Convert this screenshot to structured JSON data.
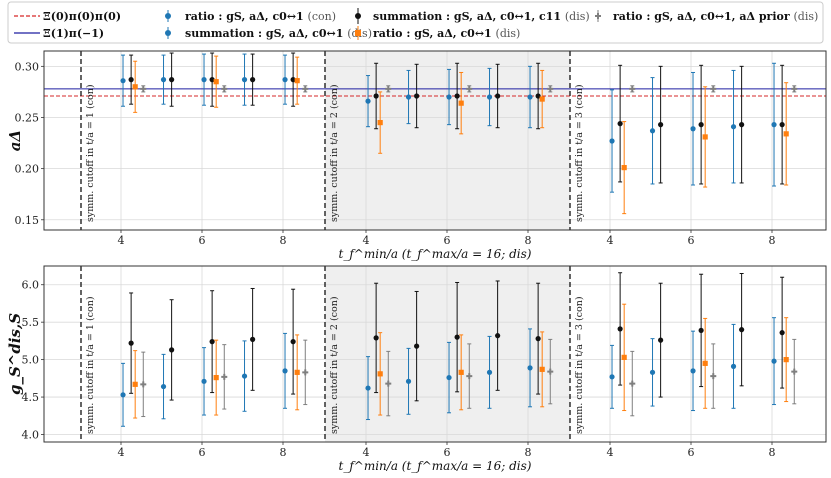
{
  "legend": {
    "items": [
      {
        "id": "xi00",
        "kind": "line",
        "color": "#d62728",
        "dash": true,
        "label": "Ξ(0)π(0)π(0)",
        "suffix": ""
      },
      {
        "id": "xi1m1",
        "kind": "line",
        "color": "#1f1fa0",
        "dash": false,
        "label": "Ξ(1)π(−1)",
        "suffix": ""
      },
      {
        "id": "ratio_con",
        "kind": "point",
        "color": "#1f77b4",
        "label": "ratio : gS, aΔ, c0↔1",
        "suffix": "(con)"
      },
      {
        "id": "sum_dis",
        "kind": "point",
        "color": "#1f77b4",
        "label": "summation : gS, aΔ, c0↔1",
        "suffix": "(dis)"
      },
      {
        "id": "sum11_dis",
        "kind": "point",
        "color": "#111111",
        "label": "summation : gS, aΔ, c0↔1, c11",
        "suffix": "(dis)"
      },
      {
        "id": "ratio_dis",
        "kind": "point",
        "color": "#ff7f0e",
        "label": "ratio : gS, aΔ, c0↔1",
        "suffix": "(dis)"
      },
      {
        "id": "ratio_prior",
        "kind": "point",
        "color": "#7f7f7f",
        "label": "ratio : gS, aΔ, c0↔1, aΔ prior",
        "suffix": "(dis)"
      }
    ]
  },
  "annotations": {
    "cut1": "symm. cutoff in t/a = 1 (con)",
    "cut2": "symm. cutoff in t/a = 2 (con)",
    "cut3": "symm. cutoff in t/a = 3 (con)"
  },
  "chart_data": [
    {
      "type": "scatter",
      "name": "top",
      "ylabel": "aΔ",
      "xlabel": "t_f^min/a (t_f^max/a = 16; dis)",
      "ylim": [
        0.14,
        0.315
      ],
      "yticks": [
        "0.15",
        "0.20",
        "0.25",
        "0.30"
      ],
      "ytick_values": [
        0.15,
        0.2,
        0.25,
        0.3
      ],
      "xticks": [
        "4",
        "6",
        "8",
        "4",
        "6",
        "8",
        "4",
        "6",
        "8"
      ],
      "hlines": [
        {
          "series": "xi00",
          "y": 0.271
        },
        {
          "series": "xi1m1",
          "y": 0.278
        }
      ],
      "series": [
        {
          "id": "sum_dis",
          "color": "#1f77b4",
          "marker": "circle",
          "points": [
            [
              0,
              4.05,
              0.286,
              0.025
            ],
            [
              0,
              5.05,
              0.287,
              0.024
            ],
            [
              0,
              6.05,
              0.287,
              0.025
            ],
            [
              0,
              7.05,
              0.287,
              0.025
            ],
            [
              0,
              8.05,
              0.287,
              0.024
            ],
            [
              1,
              4.05,
              0.266,
              0.025
            ],
            [
              1,
              5.05,
              0.27,
              0.026
            ],
            [
              1,
              6.05,
              0.27,
              0.027
            ],
            [
              1,
              7.05,
              0.27,
              0.028
            ],
            [
              1,
              8.05,
              0.27,
              0.03
            ],
            [
              2,
              4.05,
              0.227,
              0.05
            ],
            [
              2,
              5.05,
              0.237,
              0.052
            ],
            [
              2,
              6.05,
              0.239,
              0.055
            ],
            [
              2,
              7.05,
              0.241,
              0.055
            ],
            [
              2,
              8.05,
              0.243,
              0.06
            ]
          ]
        },
        {
          "id": "sum11_dis",
          "color": "#111111",
          "marker": "circle",
          "points": [
            [
              0,
              4.25,
              0.287,
              0.024
            ],
            [
              0,
              5.25,
              0.287,
              0.026
            ],
            [
              0,
              6.25,
              0.287,
              0.026
            ],
            [
              0,
              7.25,
              0.287,
              0.025
            ],
            [
              0,
              8.25,
              0.287,
              0.026
            ],
            [
              1,
              4.25,
              0.271,
              0.032
            ],
            [
              1,
              5.25,
              0.271,
              0.031
            ],
            [
              1,
              6.25,
              0.271,
              0.032
            ],
            [
              1,
              7.25,
              0.271,
              0.031
            ],
            [
              1,
              8.25,
              0.271,
              0.032
            ],
            [
              2,
              4.25,
              0.244,
              0.057
            ],
            [
              2,
              5.25,
              0.243,
              0.057
            ],
            [
              2,
              6.25,
              0.243,
              0.058
            ],
            [
              2,
              7.25,
              0.243,
              0.057
            ],
            [
              2,
              8.25,
              0.243,
              0.058
            ]
          ]
        },
        {
          "id": "ratio_dis",
          "color": "#ff7f0e",
          "marker": "square",
          "points": [
            [
              0,
              4.35,
              0.28,
              0.025
            ],
            [
              0,
              6.35,
              0.285,
              0.025
            ],
            [
              0,
              8.35,
              0.286,
              0.023
            ],
            [
              1,
              4.35,
              0.245,
              0.03
            ],
            [
              1,
              6.35,
              0.264,
              0.03
            ],
            [
              1,
              8.35,
              0.268,
              0.028
            ],
            [
              2,
              4.35,
              0.201,
              0.045
            ],
            [
              2,
              6.35,
              0.231,
              0.049
            ],
            [
              2,
              8.35,
              0.234,
              0.05
            ]
          ]
        },
        {
          "id": "ratio_prior",
          "color": "#7f7f7f",
          "marker": "plus",
          "points": [
            [
              0,
              4.55,
              0.278,
              0.003
            ],
            [
              0,
              6.55,
              0.278,
              0.003
            ],
            [
              0,
              8.55,
              0.278,
              0.003
            ],
            [
              1,
              4.55,
              0.278,
              0.003
            ],
            [
              1,
              6.55,
              0.278,
              0.003
            ],
            [
              1,
              8.55,
              0.278,
              0.003
            ],
            [
              2,
              4.55,
              0.278,
              0.003
            ],
            [
              2,
              6.55,
              0.278,
              0.003
            ],
            [
              2,
              8.55,
              0.278,
              0.003
            ]
          ]
        }
      ]
    },
    {
      "type": "scatter",
      "name": "bottom",
      "ylabel": "g_S^dis,S",
      "xlabel": "t_f^min/a (t_f^max/a = 16; dis)",
      "ylim": [
        3.9,
        6.25
      ],
      "yticks": [
        "4.0",
        "4.5",
        "5.0",
        "5.5",
        "6.0"
      ],
      "ytick_values": [
        4.0,
        4.5,
        5.0,
        5.5,
        6.0
      ],
      "xticks": [
        "4",
        "6",
        "8",
        "4",
        "6",
        "8",
        "4",
        "6",
        "8"
      ],
      "hlines": [],
      "series": [
        {
          "id": "sum_dis",
          "color": "#1f77b4",
          "marker": "circle",
          "points": [
            [
              0,
              4.05,
              4.53,
              0.42
            ],
            [
              0,
              5.05,
              4.64,
              0.43
            ],
            [
              0,
              6.05,
              4.71,
              0.45
            ],
            [
              0,
              7.05,
              4.78,
              0.47
            ],
            [
              0,
              8.05,
              4.85,
              0.5
            ],
            [
              1,
              4.05,
              4.62,
              0.42
            ],
            [
              1,
              5.05,
              4.71,
              0.44
            ],
            [
              1,
              6.05,
              4.76,
              0.47
            ],
            [
              1,
              7.05,
              4.83,
              0.48
            ],
            [
              1,
              8.05,
              4.89,
              0.52
            ],
            [
              2,
              4.05,
              4.77,
              0.42
            ],
            [
              2,
              5.05,
              4.83,
              0.45
            ],
            [
              2,
              6.05,
              4.85,
              0.53
            ],
            [
              2,
              7.05,
              4.91,
              0.56
            ],
            [
              2,
              8.05,
              4.98,
              0.58
            ]
          ]
        },
        {
          "id": "sum11_dis",
          "color": "#111111",
          "marker": "circle",
          "points": [
            [
              0,
              4.25,
              5.22,
              0.67
            ],
            [
              0,
              5.25,
              5.13,
              0.67
            ],
            [
              0,
              6.25,
              5.24,
              0.68
            ],
            [
              0,
              7.25,
              5.27,
              0.68
            ],
            [
              0,
              8.25,
              5.24,
              0.7
            ],
            [
              1,
              4.25,
              5.29,
              0.73
            ],
            [
              1,
              5.25,
              5.18,
              0.73
            ],
            [
              1,
              6.25,
              5.3,
              0.73
            ],
            [
              1,
              7.25,
              5.32,
              0.73
            ],
            [
              1,
              8.25,
              5.28,
              0.74
            ],
            [
              2,
              4.25,
              5.41,
              0.75
            ],
            [
              2,
              5.25,
              5.26,
              0.76
            ],
            [
              2,
              6.25,
              5.39,
              0.75
            ],
            [
              2,
              7.25,
              5.4,
              0.75
            ],
            [
              2,
              8.25,
              5.36,
              0.74
            ]
          ]
        },
        {
          "id": "ratio_dis",
          "color": "#ff7f0e",
          "marker": "square",
          "points": [
            [
              0,
              4.35,
              4.67,
              0.45
            ],
            [
              0,
              6.35,
              4.76,
              0.5
            ],
            [
              0,
              8.35,
              4.83,
              0.5
            ],
            [
              1,
              4.35,
              4.81,
              0.55
            ],
            [
              1,
              6.35,
              4.83,
              0.5
            ],
            [
              1,
              8.35,
              4.87,
              0.5
            ],
            [
              2,
              4.35,
              5.03,
              0.71
            ],
            [
              2,
              6.35,
              4.95,
              0.6
            ],
            [
              2,
              8.35,
              5.0,
              0.56
            ]
          ]
        },
        {
          "id": "ratio_prior",
          "color": "#7f7f7f",
          "marker": "plus",
          "points": [
            [
              0,
              4.55,
              4.67,
              0.43
            ],
            [
              0,
              6.55,
              4.77,
              0.43
            ],
            [
              0,
              8.55,
              4.83,
              0.43
            ],
            [
              1,
              4.55,
              4.68,
              0.43
            ],
            [
              1,
              6.55,
              4.78,
              0.43
            ],
            [
              1,
              8.55,
              4.84,
              0.43
            ],
            [
              2,
              4.55,
              4.68,
              0.43
            ],
            [
              2,
              6.55,
              4.78,
              0.43
            ],
            [
              2,
              8.55,
              4.84,
              0.43
            ]
          ]
        }
      ]
    }
  ]
}
